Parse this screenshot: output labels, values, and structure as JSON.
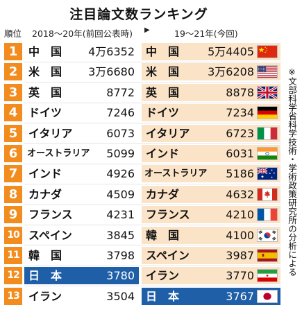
{
  "chart_data": {
    "type": "table",
    "title": "注目論文数ランキング",
    "header": {
      "rank": "順位",
      "left_period": "2018～20年(前回公表時)",
      "arrow": "▶",
      "right_period": "19～21年(今回)"
    },
    "left": [
      {
        "rank": "1",
        "country": "中　国",
        "value": "4万6352"
      },
      {
        "rank": "2",
        "country": "米　国",
        "value": "3万6680"
      },
      {
        "rank": "3",
        "country": "英　国",
        "value": "8772"
      },
      {
        "rank": "4",
        "country": "ドイツ",
        "value": "7246"
      },
      {
        "rank": "5",
        "country": "イタリア",
        "value": "6073"
      },
      {
        "rank": "6",
        "country": "オーストラリア",
        "value": "5099"
      },
      {
        "rank": "7",
        "country": "インド",
        "value": "4926"
      },
      {
        "rank": "8",
        "country": "カナダ",
        "value": "4509"
      },
      {
        "rank": "9",
        "country": "フランス",
        "value": "4231"
      },
      {
        "rank": "10",
        "country": "スペイン",
        "value": "3845"
      },
      {
        "rank": "11",
        "country": "韓　国",
        "value": "3798"
      },
      {
        "rank": "12",
        "country": "日　本",
        "value": "3780"
      },
      {
        "rank": "13",
        "country": "イラン",
        "value": "3504"
      }
    ],
    "right": [
      {
        "country": "中　国",
        "value": "5万4405",
        "flag": "china"
      },
      {
        "country": "米　国",
        "value": "3万6208",
        "flag": "usa"
      },
      {
        "country": "英　国",
        "value": "8878",
        "flag": "uk"
      },
      {
        "country": "ドイツ",
        "value": "7234",
        "flag": "germany"
      },
      {
        "country": "イタリア",
        "value": "6723",
        "flag": "italy"
      },
      {
        "country": "インド",
        "value": "6031",
        "flag": "india"
      },
      {
        "country": "オーストラリア",
        "value": "5186",
        "flag": "australia"
      },
      {
        "country": "カナダ",
        "value": "4632",
        "flag": "canada"
      },
      {
        "country": "フランス",
        "value": "4210",
        "flag": "france"
      },
      {
        "country": "韓　国",
        "value": "4100",
        "flag": "korea"
      },
      {
        "country": "スペイン",
        "value": "3987",
        "flag": "spain"
      },
      {
        "country": "イラン",
        "value": "3770",
        "flag": "iran"
      },
      {
        "country": "日　本",
        "value": "3767",
        "flag": "japan"
      }
    ],
    "highlight": "日　本",
    "source_note": "※文部科学省科学技術・学術政策研究所の分析による"
  },
  "colors": {
    "rank_badge": "#f28c1e",
    "right_column_bg": "#fbe3c7",
    "highlight_bg": "#1f5fa8",
    "highlight_text": "#ffffff"
  }
}
